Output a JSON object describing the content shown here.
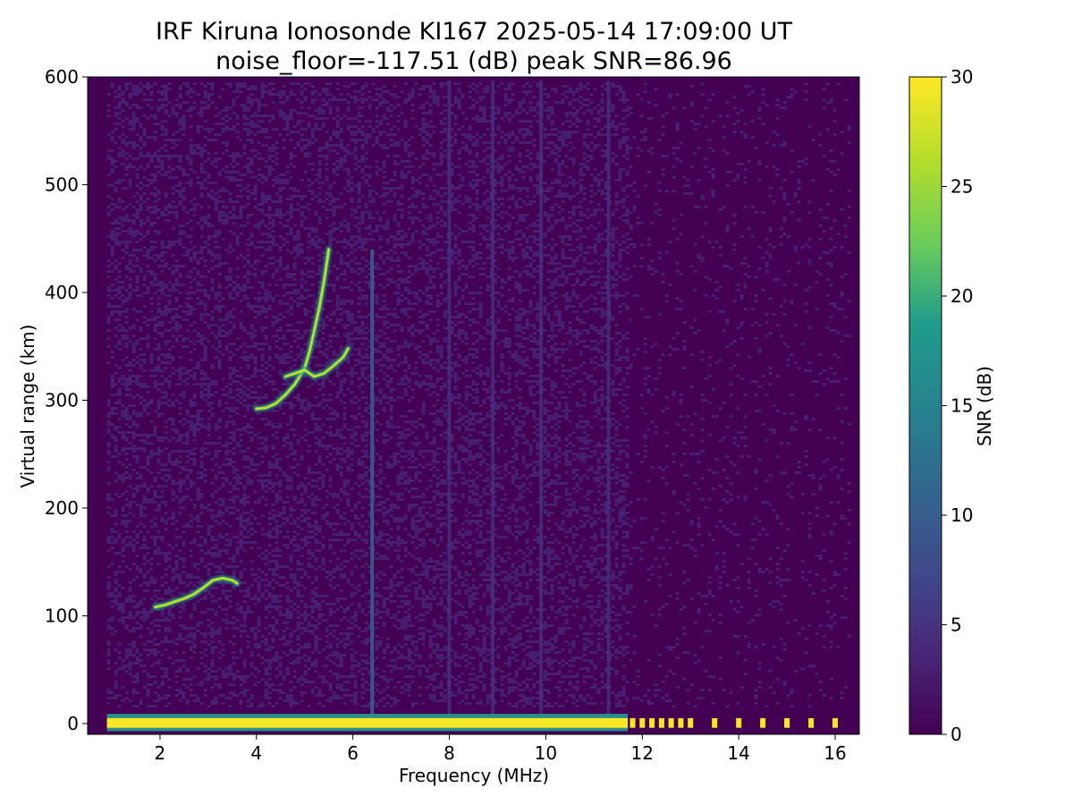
{
  "chart_data": {
    "type": "heatmap",
    "title": "IRF Kiruna Ionosonde KI167 2025-05-14 17:09:00  UT",
    "subtitle": "noise_floor=-117.51 (dB) peak SNR=86.96",
    "xlabel": "Frequency (MHz)",
    "ylabel": "Virtual range (km)",
    "xlim": [
      0.5,
      16.5
    ],
    "ylim": [
      -10,
      600
    ],
    "xticks": [
      2,
      4,
      6,
      8,
      10,
      12,
      14,
      16
    ],
    "yticks": [
      0,
      100,
      200,
      300,
      400,
      500,
      600
    ],
    "grid": false,
    "colorbar": {
      "label": "SNR (dB)",
      "range": [
        0,
        30
      ],
      "ticks": [
        0,
        5,
        10,
        15,
        20,
        25,
        30
      ],
      "colormap": "viridis",
      "colors": [
        "#440154",
        "#482777",
        "#3f4a8a",
        "#31678e",
        "#26838f",
        "#1f9d8a",
        "#6cce5a",
        "#b6de2b",
        "#fee825"
      ]
    },
    "traces": [
      {
        "name": "E-layer echo",
        "freq_mhz": [
          1.9,
          2.1,
          2.3,
          2.5,
          2.7,
          2.9,
          3.1,
          3.3,
          3.5,
          3.6
        ],
        "range_km": [
          108,
          110,
          113,
          116,
          120,
          126,
          133,
          135,
          133,
          130
        ]
      },
      {
        "name": "F-layer o-trace",
        "freq_mhz": [
          4.0,
          4.2,
          4.4,
          4.6,
          4.8,
          5.0,
          5.1,
          5.2,
          5.3,
          5.4,
          5.5
        ],
        "range_km": [
          292,
          293,
          297,
          305,
          315,
          330,
          345,
          365,
          385,
          410,
          440
        ]
      },
      {
        "name": "F-layer x-trace",
        "freq_mhz": [
          4.6,
          4.8,
          5.0,
          5.2,
          5.4,
          5.6,
          5.8,
          5.9
        ],
        "range_km": [
          322,
          325,
          328,
          322,
          325,
          332,
          340,
          348
        ]
      },
      {
        "name": "ground echo",
        "freq_mhz": [
          0.9,
          11.7
        ],
        "range_km": [
          0,
          0
        ]
      }
    ],
    "interference_lines_mhz": [
      6.4,
      8.0,
      8.9,
      9.9,
      11.3
    ],
    "sounding_spots_mhz": [
      11.8,
      12.0,
      12.2,
      12.4,
      12.6,
      12.8,
      13.0,
      13.5,
      14.0,
      14.5,
      15.0,
      15.5,
      16.0
    ]
  }
}
